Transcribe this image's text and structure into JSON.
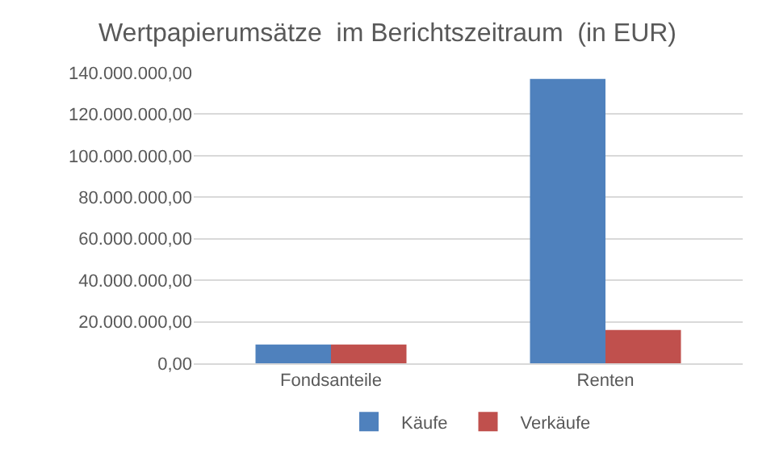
{
  "chart_data": {
    "type": "bar",
    "title": "Wertpapierumsätze  im Berichtszeitraum  (in EUR)",
    "categories": [
      "Fondsanteile",
      "Renten"
    ],
    "series": [
      {
        "name": "Käufe",
        "color": "#4f81bd",
        "values": [
          9000000,
          137000000
        ]
      },
      {
        "name": "Verkäufe",
        "color": "#c0504d",
        "values": [
          9000000,
          16000000
        ]
      }
    ],
    "ylim": [
      0,
      140000000
    ],
    "yticks": [
      {
        "value": 0,
        "label": "0,00"
      },
      {
        "value": 20000000,
        "label": "20.000.000,00"
      },
      {
        "value": 40000000,
        "label": "40.000.000,00"
      },
      {
        "value": 60000000,
        "label": "60.000.000,00"
      },
      {
        "value": 80000000,
        "label": "80.000.000,00"
      },
      {
        "value": 100000000,
        "label": "100.000.000,00"
      },
      {
        "value": 120000000,
        "label": "120.000.000,00"
      },
      {
        "value": 140000000,
        "label": "140.000.000,00"
      }
    ],
    "grid": "y",
    "legend": "bottom"
  }
}
